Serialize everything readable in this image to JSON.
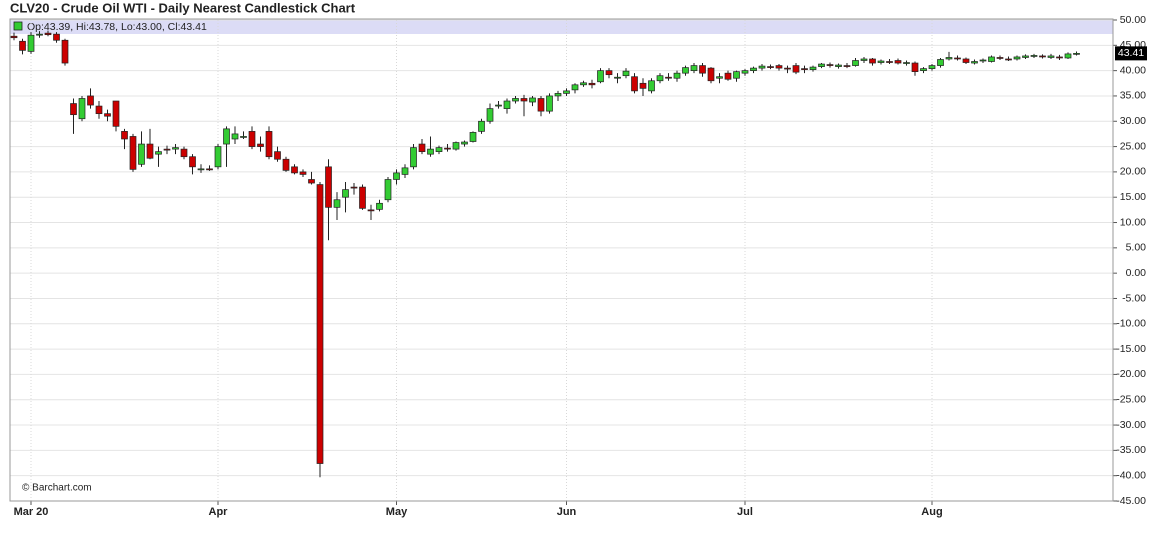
{
  "chart_data": {
    "type": "candlestick",
    "title": "CLV20 - Crude Oil WTI - Daily Nearest Candlestick Chart",
    "ohlc_label": "Op:43.39, Hi:43.78, Lo:43.00, Cl:43.41",
    "last_label": "43.41",
    "credit": "© Barchart.com",
    "categories": [
      null,
      null,
      "Mar 20",
      null,
      null,
      null,
      null,
      null,
      null,
      null,
      null,
      null,
      null,
      null,
      null,
      null,
      null,
      null,
      null,
      null,
      null,
      null,
      null,
      null,
      "Apr",
      null,
      null,
      null,
      null,
      null,
      null,
      null,
      null,
      null,
      null,
      null,
      null,
      null,
      null,
      null,
      null,
      null,
      null,
      null,
      null,
      "May",
      null,
      null,
      null,
      null,
      null,
      null,
      null,
      null,
      null,
      null,
      null,
      null,
      null,
      null,
      null,
      null,
      null,
      null,
      null,
      "Jun",
      null,
      null,
      null,
      null,
      null,
      null,
      null,
      null,
      null,
      null,
      null,
      null,
      null,
      null,
      null,
      null,
      null,
      null,
      null,
      null,
      "Jul",
      null,
      null,
      null,
      null,
      null,
      null,
      null,
      null,
      null,
      null,
      null,
      null,
      null,
      null,
      null,
      null,
      null,
      null,
      null,
      null,
      null,
      "Aug",
      null,
      null,
      null,
      null,
      null,
      null,
      null,
      null,
      null,
      null,
      null,
      null,
      null,
      null,
      null,
      null,
      null
    ],
    "open": [
      46.8,
      45.8,
      43.8,
      47,
      47.4,
      47.2,
      46,
      33.5,
      30.5,
      35,
      33,
      31.5,
      34,
      28,
      27,
      21.5,
      25.5,
      23.5,
      24.5,
      24.5,
      24.5,
      23,
      20.5,
      20.6,
      21,
      25.5,
      26.5,
      27,
      28,
      25.5,
      28,
      24,
      22.5,
      21,
      20,
      18.5,
      17.5,
      21,
      13,
      15,
      17,
      17,
      12.5,
      12.6,
      14.5,
      18.5,
      19.5,
      21,
      25.5,
      23.5,
      24,
      24.7,
      24.5,
      25.5,
      26,
      28,
      30,
      33,
      32.5,
      34,
      34.5,
      33.8,
      34.5,
      32,
      35,
      35.5,
      36.2,
      37.2,
      37.5,
      37.8,
      40,
      38.5,
      39,
      38.8,
      37.5,
      36,
      38,
      38.7,
      38.5,
      39.5,
      40,
      41,
      40.5,
      38.5,
      39.5,
      38.5,
      39.5,
      40,
      40.5,
      40.8,
      41,
      40.5,
      41,
      40.4,
      40.2,
      40.8,
      41.2,
      40.8,
      41,
      41,
      42,
      42.3,
      41.6,
      41.8,
      42,
      41.5,
      41.5,
      40,
      40.4,
      41,
      42.3,
      42.5,
      42.3,
      41.5,
      41.9,
      41.8,
      42.6,
      42.3,
      42.3,
      42.6,
      42.8,
      42.9,
      42.6,
      42.7,
      42.5,
      43.39
    ],
    "high": [
      47.5,
      46.3,
      47.6,
      47.8,
      47.9,
      47.6,
      46.3,
      34.5,
      35,
      36.5,
      34,
      32.3,
      34,
      28.5,
      27.5,
      28,
      28.5,
      25,
      25.2,
      25.5,
      25,
      23.5,
      21.5,
      21.3,
      25.5,
      29,
      29,
      28,
      29,
      27,
      29,
      25,
      23,
      21.5,
      20.5,
      20,
      18,
      22.5,
      16,
      18,
      17.8,
      17.5,
      13.5,
      14.5,
      19,
      20.5,
      21.5,
      25.5,
      26.5,
      27,
      25.2,
      25.5,
      26,
      26.2,
      28,
      30.5,
      33.5,
      34,
      34.5,
      35,
      35.2,
      35,
      35,
      35.5,
      36,
      36.5,
      37.5,
      38,
      38.2,
      40.5,
      40.5,
      39.5,
      40.5,
      39.5,
      38.5,
      38.5,
      39.5,
      39.5,
      40,
      41,
      41.5,
      41.5,
      40.7,
      39.5,
      40,
      40,
      40.3,
      40.8,
      41.3,
      41.2,
      41.3,
      41,
      41.5,
      41,
      41,
      41.5,
      41.6,
      41.4,
      41.5,
      42.5,
      42.7,
      42.5,
      42.2,
      42.3,
      42.4,
      42,
      41.8,
      40.7,
      41.3,
      42.5,
      43.7,
      43,
      42.6,
      42.2,
      42.4,
      43,
      43,
      42.8,
      43,
      43.2,
      43.3,
      43.2,
      43.3,
      43.1,
      43.6,
      43.78
    ],
    "low": [
      46,
      43.2,
      43.3,
      46.5,
      46.8,
      45.5,
      41,
      27.5,
      30,
      32.5,
      30.5,
      30,
      28,
      24.5,
      20,
      21,
      22.5,
      21,
      23.5,
      23.5,
      22.5,
      19.5,
      19.8,
      20.2,
      20.5,
      21,
      25.5,
      26.5,
      24.5,
      24,
      22.5,
      22,
      20,
      19.5,
      19,
      17.5,
      -40.3,
      6.5,
      10.5,
      12,
      15.5,
      12.5,
      10.5,
      12.2,
      14,
      17.5,
      18.8,
      20.5,
      23.5,
      23,
      23.5,
      24,
      24.2,
      25,
      25.8,
      27.5,
      29.5,
      32.5,
      31.5,
      33.5,
      31,
      33,
      31,
      31.5,
      34,
      35,
      35.5,
      36.8,
      36.5,
      37.5,
      38.5,
      37.5,
      38.5,
      35.5,
      35,
      35.5,
      37.5,
      38,
      37.8,
      39,
      39.5,
      38.8,
      37.5,
      37.5,
      38,
      37.8,
      39,
      39.5,
      40,
      40.3,
      40,
      39.5,
      39.3,
      39.5,
      39.8,
      40.5,
      40.6,
      40.4,
      40.5,
      40.8,
      41.5,
      41,
      41.2,
      41.3,
      41.2,
      41,
      39,
      39.5,
      40,
      40.6,
      42,
      42,
      41.3,
      41.2,
      41.5,
      41.6,
      42.1,
      41.9,
      42,
      42.3,
      42.5,
      42.4,
      42.3,
      42.1,
      42.3,
      43
    ],
    "close": [
      46.5,
      44,
      47,
      47.2,
      47.1,
      46,
      41.5,
      31.3,
      34.5,
      33.2,
      31.5,
      31,
      29,
      26.5,
      20.5,
      25.5,
      22.7,
      24,
      24.3,
      24.8,
      23,
      21,
      20.6,
      20.4,
      25,
      28.5,
      27.5,
      27,
      25,
      25,
      23,
      22.5,
      20.3,
      19.8,
      19.5,
      17.8,
      -37.6,
      13,
      14.5,
      16.5,
      16.9,
      12.8,
      12.3,
      13.8,
      18.5,
      19.8,
      20.8,
      24.8,
      24,
      24.5,
      24.8,
      24.5,
      25.8,
      25.9,
      27.8,
      30,
      32.5,
      33.2,
      34,
      34.5,
      34,
      34.6,
      32,
      35,
      35.5,
      36,
      37.2,
      37.6,
      37.2,
      40,
      39.2,
      38.7,
      39.9,
      36,
      36.5,
      38,
      39,
      38.6,
      39.5,
      40.6,
      41,
      39.5,
      38,
      38.8,
      38.3,
      39.8,
      40,
      40.5,
      40.9,
      40.7,
      40.5,
      40.4,
      39.7,
      40.2,
      40.7,
      41.3,
      41,
      41.1,
      40.9,
      42,
      42.3,
      41.5,
      41.9,
      41.7,
      41.5,
      41.6,
      39.8,
      40.4,
      41,
      42.2,
      42.6,
      42.3,
      41.6,
      41.8,
      42.1,
      42.7,
      42.4,
      42.2,
      42.7,
      42.9,
      43,
      42.7,
      42.9,
      42.5,
      43.3,
      43.41
    ],
    "up_color": "#33cc33",
    "down_color": "#cc0000",
    "ylim": [
      -45,
      50
    ],
    "yticks": [
      {
        "value": 50,
        "label": "50.00"
      },
      {
        "value": 45,
        "label": "45.00"
      },
      {
        "value": 40,
        "label": "40.00"
      },
      {
        "value": 35,
        "label": "35.00"
      },
      {
        "value": 30,
        "label": "30.00"
      },
      {
        "value": 25,
        "label": "25.00"
      },
      {
        "value": 20,
        "label": "20.00"
      },
      {
        "value": 15,
        "label": "15.00"
      },
      {
        "value": 10,
        "label": "10.00"
      },
      {
        "value": 5,
        "label": "5.00"
      },
      {
        "value": 0,
        "label": "0.00"
      },
      {
        "value": -5,
        "label": "-5.00"
      },
      {
        "value": -10,
        "label": "-10.00"
      },
      {
        "value": -15,
        "label": "-15.00"
      },
      {
        "value": -20,
        "label": "-20.00"
      },
      {
        "value": -25,
        "label": "-25.00"
      },
      {
        "value": -30,
        "label": "-30.00"
      },
      {
        "value": -35,
        "label": "-35.00"
      },
      {
        "value": -40,
        "label": "-40.00"
      },
      {
        "value": -45,
        "label": "-45.00"
      }
    ],
    "grid": true
  }
}
